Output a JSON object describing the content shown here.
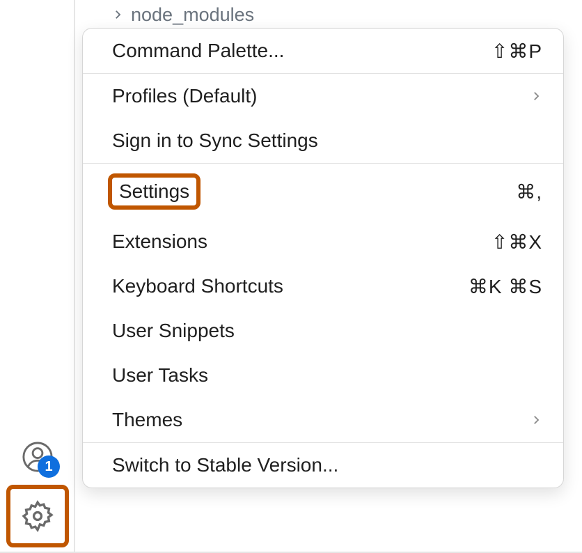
{
  "colors": {
    "highlight_border": "#c05600",
    "icon_stroke": "#6a6a6a",
    "badge_bg": "#0f6fde",
    "tree_text": "#6a737d",
    "menu_text": "#1f1f1f",
    "divider": "#e2e2e2"
  },
  "activity_bar": {
    "account_badge": "1"
  },
  "explorer": {
    "tree_item": "node_modules"
  },
  "menu": {
    "sections": [
      {
        "items": [
          {
            "key": "command_palette",
            "label": "Command Palette...",
            "shortcut": "⇧⌘P",
            "submenu": false,
            "highlighted": false
          }
        ]
      },
      {
        "items": [
          {
            "key": "profiles",
            "label": "Profiles (Default)",
            "shortcut": "",
            "submenu": true,
            "highlighted": false
          },
          {
            "key": "sign_in_sync",
            "label": "Sign in to Sync Settings",
            "shortcut": "",
            "submenu": false,
            "highlighted": false
          }
        ]
      },
      {
        "items": [
          {
            "key": "settings",
            "label": "Settings",
            "shortcut": "⌘,",
            "submenu": false,
            "highlighted": true
          },
          {
            "key": "extensions",
            "label": "Extensions",
            "shortcut": "⇧⌘X",
            "submenu": false,
            "highlighted": false
          },
          {
            "key": "keyboard_shortcuts",
            "label": "Keyboard Shortcuts",
            "shortcut": "⌘K ⌘S",
            "submenu": false,
            "highlighted": false
          },
          {
            "key": "user_snippets",
            "label": "User Snippets",
            "shortcut": "",
            "submenu": false,
            "highlighted": false
          },
          {
            "key": "user_tasks",
            "label": "User Tasks",
            "shortcut": "",
            "submenu": false,
            "highlighted": false
          },
          {
            "key": "themes",
            "label": "Themes",
            "shortcut": "",
            "submenu": true,
            "highlighted": false
          }
        ]
      },
      {
        "items": [
          {
            "key": "switch_stable",
            "label": "Switch to Stable Version...",
            "shortcut": "",
            "submenu": false,
            "highlighted": false
          }
        ]
      }
    ]
  }
}
